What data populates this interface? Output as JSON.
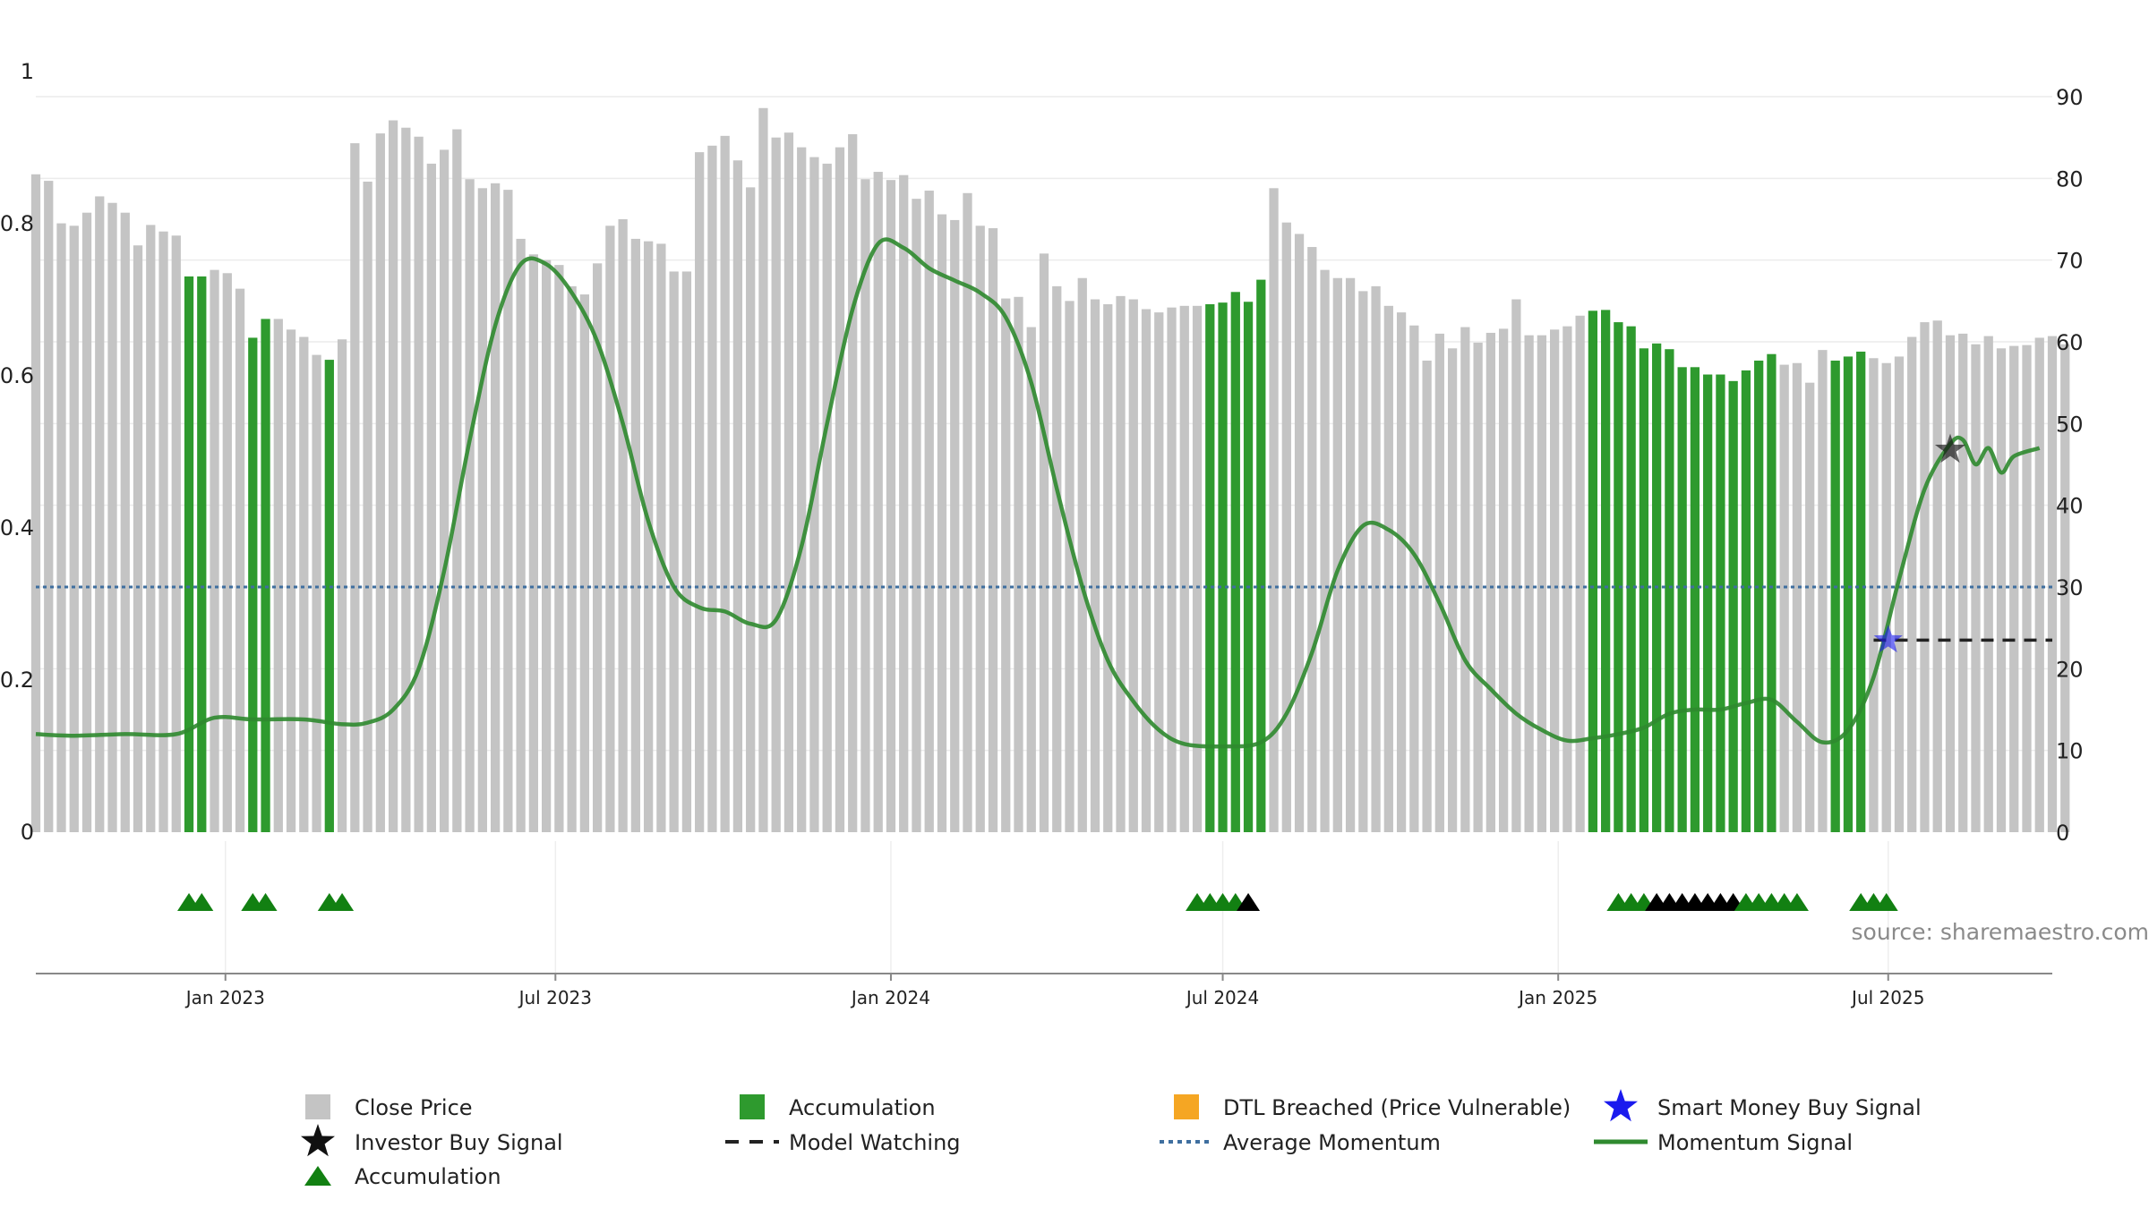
{
  "chart_data": {
    "type": "bar",
    "title": "",
    "source": "source: sharemaestro.com",
    "left_axis": {
      "min": 0,
      "max": 1,
      "ticks": [
        "0",
        "0.2",
        "0.4",
        "0.6",
        "0.8",
        "1"
      ]
    },
    "right_axis": {
      "min": 0,
      "max": 90,
      "ticks": [
        "0",
        "10",
        "20",
        "30",
        "40",
        "50",
        "60",
        "70",
        "80",
        "90"
      ]
    },
    "x_axis": {
      "start": "2022-09-19",
      "end": "2025-09-29",
      "ticks": [
        {
          "label": "Jan 2023",
          "date": "2023-01-01"
        },
        {
          "label": "Jul 2023",
          "date": "2023-07-01"
        },
        {
          "label": "Jan 2024",
          "date": "2024-01-01"
        },
        {
          "label": "Jul 2024",
          "date": "2024-07-01"
        },
        {
          "label": "Jan 2025",
          "date": "2025-01-01"
        },
        {
          "label": "Jul 2025",
          "date": "2025-07-01"
        }
      ]
    },
    "grid": true,
    "colors": {
      "close_price": "#c4c4c4",
      "accumulation": "#2e9a2e",
      "dtl_breached": "#f5a623",
      "smart_money": "#1a1aee",
      "investor": "#111111",
      "average_momentum": "#3f6f9f",
      "momentum": "#2f8a2f",
      "accum_triangle": "#128012",
      "model_watching": "#222222"
    },
    "close_price_bars": {
      "start_date": "2022-09-19",
      "interval_days": 7,
      "values": [
        80.5,
        79.7,
        74.5,
        74.2,
        75.8,
        77.8,
        77.0,
        75.8,
        71.8,
        74.3,
        73.5,
        73.0,
        68.0,
        68.0,
        68.8,
        68.4,
        66.5,
        60.5,
        62.8,
        62.8,
        61.5,
        60.6,
        58.4,
        57.8,
        60.3,
        84.3,
        79.6,
        85.5,
        87.1,
        86.2,
        85.1,
        81.8,
        83.5,
        86.0,
        79.9,
        78.8,
        79.4,
        78.6,
        72.6,
        70.7,
        70.0,
        69.4,
        66.8,
        65.8,
        69.6,
        74.2,
        75.0,
        72.6,
        72.3,
        72.0,
        68.6,
        68.6,
        83.2,
        84.0,
        85.2,
        82.2,
        78.9,
        88.6,
        85.0,
        85.6,
        83.8,
        82.6,
        81.8,
        83.8,
        85.4,
        79.9,
        80.8,
        79.8,
        80.4,
        77.5,
        78.5,
        75.6,
        74.9,
        78.2,
        74.2,
        73.9,
        65.3,
        65.5,
        61.8,
        70.8,
        66.8,
        65.0,
        67.8,
        65.2,
        64.6,
        65.6,
        65.2,
        64.0,
        63.6,
        64.2,
        64.4,
        64.4,
        64.6,
        64.8,
        66.1,
        64.9,
        67.6,
        78.8,
        74.6,
        73.2,
        71.6,
        68.8,
        67.8,
        67.8,
        66.2,
        66.8,
        64.4,
        63.6,
        62.0,
        57.7,
        61.0,
        59.2,
        61.8,
        59.9,
        61.1,
        61.6,
        65.2,
        60.8,
        60.8,
        61.5,
        61.9,
        63.2,
        63.8,
        63.9,
        62.4,
        61.9,
        59.2,
        59.8,
        59.1,
        56.9,
        56.9,
        56.0,
        56.0,
        55.2,
        56.5,
        57.7,
        58.5,
        57.2,
        57.4,
        55.0,
        59.0,
        57.7,
        58.2,
        58.8,
        58.0,
        57.4,
        58.2,
        60.6,
        62.4,
        62.6,
        60.8,
        61.0,
        59.7,
        60.7,
        59.2,
        59.5,
        59.6,
        60.5,
        60.7,
        59.7
      ],
      "accumulation_indices": [
        12,
        13,
        17,
        18,
        23,
        92,
        93,
        94,
        95,
        96,
        122,
        123,
        124,
        125,
        126,
        127,
        128,
        129,
        130,
        131,
        132,
        133,
        134,
        135,
        136,
        141,
        142,
        143
      ]
    },
    "momentum_signal": [
      [
        "2022-09-19",
        12.0
      ],
      [
        "2022-10-10",
        11.8
      ],
      [
        "2022-11-07",
        12.0
      ],
      [
        "2022-12-05",
        12.0
      ],
      [
        "2022-12-26",
        14.0
      ],
      [
        "2023-01-16",
        13.8
      ],
      [
        "2023-02-13",
        13.8
      ],
      [
        "2023-03-06",
        13.2
      ],
      [
        "2023-03-20",
        13.4
      ],
      [
        "2023-04-03",
        15.0
      ],
      [
        "2023-04-17",
        20.0
      ],
      [
        "2023-05-01",
        32.0
      ],
      [
        "2023-05-15",
        48.0
      ],
      [
        "2023-05-29",
        62.0
      ],
      [
        "2023-06-12",
        69.5
      ],
      [
        "2023-06-26",
        69.5
      ],
      [
        "2023-07-10",
        66.0
      ],
      [
        "2023-07-24",
        60.0
      ],
      [
        "2023-08-07",
        50.0
      ],
      [
        "2023-08-21",
        38.0
      ],
      [
        "2023-09-04",
        30.0
      ],
      [
        "2023-09-18",
        27.5
      ],
      [
        "2023-10-02",
        27.0
      ],
      [
        "2023-10-16",
        25.5
      ],
      [
        "2023-10-30",
        26.0
      ],
      [
        "2023-11-13",
        35.0
      ],
      [
        "2023-11-27",
        50.0
      ],
      [
        "2023-12-11",
        64.0
      ],
      [
        "2023-12-25",
        72.0
      ],
      [
        "2024-01-08",
        71.5
      ],
      [
        "2024-01-22",
        69.0
      ],
      [
        "2024-02-05",
        67.5
      ],
      [
        "2024-02-19",
        66.0
      ],
      [
        "2024-03-04",
        63.0
      ],
      [
        "2024-03-18",
        55.0
      ],
      [
        "2024-04-01",
        42.0
      ],
      [
        "2024-04-15",
        30.0
      ],
      [
        "2024-04-29",
        21.0
      ],
      [
        "2024-05-13",
        16.0
      ],
      [
        "2024-05-27",
        12.5
      ],
      [
        "2024-06-10",
        10.8
      ],
      [
        "2024-07-01",
        10.5
      ],
      [
        "2024-07-22",
        11.0
      ],
      [
        "2024-08-05",
        14.5
      ],
      [
        "2024-08-19",
        22.0
      ],
      [
        "2024-09-02",
        32.0
      ],
      [
        "2024-09-16",
        37.5
      ],
      [
        "2024-09-30",
        37.0
      ],
      [
        "2024-10-14",
        34.0
      ],
      [
        "2024-10-28",
        28.0
      ],
      [
        "2024-11-11",
        21.0
      ],
      [
        "2024-11-25",
        17.5
      ],
      [
        "2024-12-09",
        14.5
      ],
      [
        "2024-12-23",
        12.5
      ],
      [
        "2025-01-06",
        11.2
      ],
      [
        "2025-01-20",
        11.5
      ],
      [
        "2025-02-03",
        12.0
      ],
      [
        "2025-02-17",
        12.8
      ],
      [
        "2025-03-03",
        14.5
      ],
      [
        "2025-03-17",
        15.0
      ],
      [
        "2025-03-31",
        15.0
      ],
      [
        "2025-04-14",
        15.8
      ],
      [
        "2025-04-28",
        16.2
      ],
      [
        "2025-05-12",
        13.5
      ],
      [
        "2025-05-26",
        11.0
      ],
      [
        "2025-06-09",
        12.5
      ],
      [
        "2025-06-23",
        19.0
      ],
      [
        "2025-07-07",
        31.0
      ],
      [
        "2025-07-21",
        42.0
      ],
      [
        "2025-08-04",
        47.5
      ],
      [
        "2025-08-11",
        48.0
      ],
      [
        "2025-08-18",
        45.0
      ],
      [
        "2025-08-25",
        47.0
      ],
      [
        "2025-09-01",
        44.0
      ],
      [
        "2025-09-08",
        46.0
      ],
      [
        "2025-09-22",
        47.0
      ]
    ],
    "average_momentum": 30.0,
    "model_watching": {
      "from": "2025-06-23",
      "to": "2025-09-29",
      "value": 23.5
    },
    "smart_money_signal": {
      "date": "2025-07-01",
      "value": 23.5
    },
    "investor_buy_signal": {
      "date": "2025-08-04",
      "value": 46.8
    },
    "accumulation_triangles": [
      {
        "date": "2022-12-12",
        "color": "green"
      },
      {
        "date": "2022-12-19",
        "color": "green"
      },
      {
        "date": "2023-01-16",
        "color": "green"
      },
      {
        "date": "2023-01-23",
        "color": "green"
      },
      {
        "date": "2023-02-27",
        "color": "green"
      },
      {
        "date": "2023-03-06",
        "color": "green"
      },
      {
        "date": "2024-06-17",
        "color": "green"
      },
      {
        "date": "2024-06-24",
        "color": "green"
      },
      {
        "date": "2024-07-01",
        "color": "green"
      },
      {
        "date": "2024-07-08",
        "color": "green"
      },
      {
        "date": "2024-07-15",
        "color": "black"
      },
      {
        "date": "2025-02-03",
        "color": "green"
      },
      {
        "date": "2025-02-10",
        "color": "green"
      },
      {
        "date": "2025-02-17",
        "color": "green"
      },
      {
        "date": "2025-02-24",
        "color": "black"
      },
      {
        "date": "2025-03-03",
        "color": "black"
      },
      {
        "date": "2025-03-10",
        "color": "black"
      },
      {
        "date": "2025-03-17",
        "color": "black"
      },
      {
        "date": "2025-03-24",
        "color": "black"
      },
      {
        "date": "2025-03-31",
        "color": "black"
      },
      {
        "date": "2025-04-07",
        "color": "black"
      },
      {
        "date": "2025-04-14",
        "color": "green"
      },
      {
        "date": "2025-04-21",
        "color": "green"
      },
      {
        "date": "2025-04-28",
        "color": "green"
      },
      {
        "date": "2025-05-05",
        "color": "green"
      },
      {
        "date": "2025-05-12",
        "color": "green"
      },
      {
        "date": "2025-06-16",
        "color": "green"
      },
      {
        "date": "2025-06-23",
        "color": "green"
      },
      {
        "date": "2025-06-30",
        "color": "green"
      }
    ],
    "legend": [
      {
        "key": "close_price",
        "label": "Close Price",
        "marker": "square"
      },
      {
        "key": "accumulation",
        "label": "Accumulation",
        "marker": "square"
      },
      {
        "key": "dtl_breached",
        "label": "DTL Breached (Price Vulnerable)",
        "marker": "square"
      },
      {
        "key": "smart_money",
        "label": "Smart Money Buy Signal",
        "marker": "star"
      },
      {
        "key": "investor",
        "label": "Investor Buy Signal",
        "marker": "star"
      },
      {
        "key": "model_watching",
        "label": "Model Watching",
        "marker": "dash"
      },
      {
        "key": "average_momentum",
        "label": "Average Momentum",
        "marker": "dotted"
      },
      {
        "key": "momentum",
        "label": "Momentum Signal",
        "marker": "line"
      },
      {
        "key": "accum_triangle",
        "label": "Accumulation",
        "marker": "triangle"
      }
    ]
  }
}
